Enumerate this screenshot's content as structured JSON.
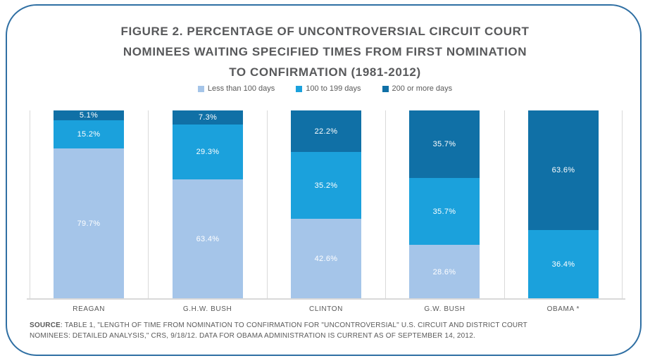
{
  "title": {
    "lines": [
      "FIGURE 2. PERCENTAGE OF UNCONTROVERSIAL CIRCUIT COURT",
      "NOMINEES WAITING SPECIFIED TIMES FROM FIRST NOMINATION",
      "TO CONFIRMATION (1981-2012)"
    ]
  },
  "colors": {
    "light": "#A5C5E9",
    "medium": "#1BA1DC",
    "dark": "#1070A6",
    "border": "#2F6FA3",
    "title_text": "#58595B",
    "muted_text": "#595959",
    "gridline": "#D9D9D9",
    "segment_label_text": "#FFFFFF"
  },
  "chart_data": {
    "type": "bar",
    "stacked": true,
    "title": "FIGURE 2. PERCENTAGE OF UNCONTROVERSIAL CIRCUIT COURT NOMINEES WAITING SPECIFIED TIMES FROM FIRST NOMINATION TO CONFIRMATION (1981-2012)",
    "categories": [
      "REAGAN",
      "G.H.W. BUSH",
      "CLINTON",
      "G.W. BUSH",
      "OBAMA *"
    ],
    "series": [
      {
        "name": "Less than 100 days",
        "color_key": "light",
        "values": [
          79.7,
          63.4,
          42.6,
          28.6,
          0
        ]
      },
      {
        "name": "100 to 199 days",
        "color_key": "medium",
        "values": [
          15.2,
          29.3,
          35.2,
          35.7,
          36.4
        ]
      },
      {
        "name": "200 or more days",
        "color_key": "dark",
        "values": [
          5.1,
          7.3,
          22.2,
          35.7,
          63.6
        ]
      }
    ],
    "value_suffix": "%",
    "ylim": [
      0,
      100
    ],
    "legend_position": "top",
    "grid": "vertical-panel-separators",
    "y_axis_labels_shown": false
  },
  "source": {
    "label": "SOURCE",
    "line1": ": TABLE 1, \"LENGTH OF TIME FROM NOMINATION TO CONFIRMATION FOR \"UNCONTROVERSIAL\" U.S. CIRCUIT AND DISTRICT COURT",
    "line2": "NOMINEES: DETAILED ANALYSIS,\" CRS, 9/18/12. DATA FOR OBAMA ADMINISTRATION IS CURRENT AS OF SEPTEMBER 14, 2012."
  }
}
